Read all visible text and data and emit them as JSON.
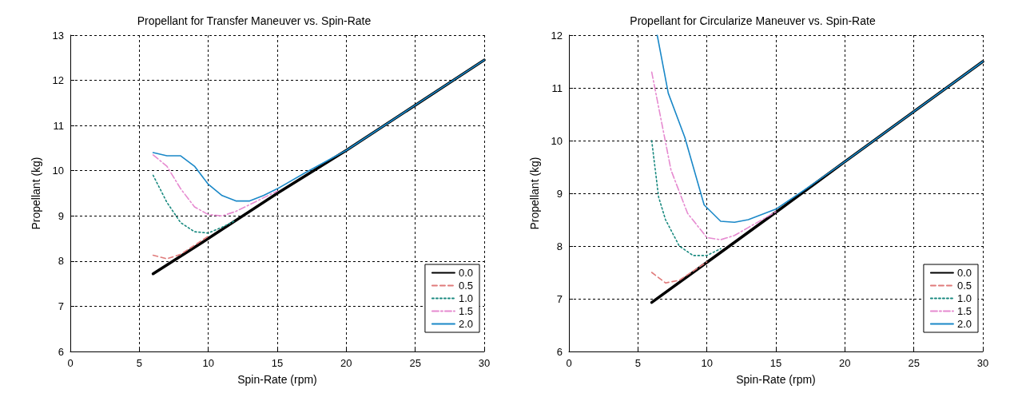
{
  "chart_data": [
    {
      "type": "line",
      "title": "Propellant for Transfer Maneuver vs. Spin-Rate",
      "xlabel": "Spin-Rate (rpm)",
      "ylabel": "Propellant (kg)",
      "xlim": [
        0,
        30
      ],
      "xticks": [
        0,
        5,
        10,
        15,
        20,
        25,
        30
      ],
      "ylim": [
        6,
        13
      ],
      "yticks": [
        6,
        7,
        8,
        9,
        10,
        11,
        12,
        13
      ],
      "grid": true,
      "legend": "bottom right",
      "marker": "none",
      "series": [
        {
          "name": "0.0",
          "color": "#000000",
          "line_style": "solid",
          "x": [
            6,
            10,
            15,
            20,
            25,
            30
          ],
          "values": [
            7.72,
            8.5,
            9.5,
            10.45,
            11.45,
            12.45
          ]
        },
        {
          "name": "0.5",
          "color": "#e07b7b",
          "line_style": "dashed",
          "x": [
            6,
            7,
            8,
            10
          ],
          "values": [
            8.13,
            8.05,
            8.15,
            8.55
          ]
        },
        {
          "name": "1.0",
          "color": "#1a8a80",
          "line_style": "dotted",
          "x": [
            6,
            7,
            8,
            9,
            10,
            11,
            12
          ],
          "values": [
            9.9,
            9.3,
            8.85,
            8.65,
            8.62,
            8.75,
            8.9
          ]
        },
        {
          "name": "1.5",
          "color": "#e68ad0",
          "line_style": "dashdot",
          "x": [
            6,
            7,
            8,
            9,
            10,
            11,
            12,
            13,
            15
          ],
          "values": [
            10.35,
            10.1,
            9.6,
            9.2,
            9.03,
            9.0,
            9.1,
            9.25,
            9.55
          ]
        },
        {
          "name": "2.0",
          "color": "#1a88c8",
          "line_style": "solid",
          "x": [
            6,
            7,
            8,
            9,
            10,
            11,
            12,
            13,
            14,
            15,
            17,
            20,
            25,
            30
          ],
          "values": [
            10.4,
            10.33,
            10.33,
            10.1,
            9.7,
            9.45,
            9.33,
            9.33,
            9.45,
            9.6,
            9.95,
            10.45,
            11.45,
            12.45
          ]
        }
      ]
    },
    {
      "type": "line",
      "title": "Propellant for Circularize Maneuver vs. Spin-Rate",
      "xlabel": "Spin-Rate (rpm)",
      "ylabel": "Propellant (kg)",
      "xlim": [
        0,
        30
      ],
      "xticks": [
        0,
        5,
        10,
        15,
        20,
        25,
        30
      ],
      "ylim": [
        6,
        12
      ],
      "yticks": [
        6,
        7,
        8,
        9,
        10,
        11,
        12
      ],
      "grid": true,
      "legend": "bottom right",
      "marker": "none",
      "series": [
        {
          "name": "0.0",
          "color": "#000000",
          "line_style": "solid",
          "x": [
            6,
            10,
            15,
            20,
            25,
            30
          ],
          "values": [
            6.93,
            7.69,
            8.64,
            9.6,
            10.55,
            11.5
          ]
        },
        {
          "name": "0.5",
          "color": "#e07b7b",
          "line_style": "dashed",
          "x": [
            6,
            7,
            8,
            10
          ],
          "values": [
            7.5,
            7.3,
            7.35,
            7.7
          ]
        },
        {
          "name": "1.0",
          "color": "#1a8a80",
          "line_style": "dotted",
          "x": [
            6,
            6.5,
            7,
            8,
            9,
            10,
            11
          ],
          "values": [
            10.0,
            8.93,
            8.5,
            8.0,
            7.82,
            7.82,
            7.95
          ]
        },
        {
          "name": "1.5",
          "color": "#e68ad0",
          "line_style": "dashdot",
          "x": [
            6,
            7.4,
            8.6,
            10,
            11,
            12,
            13,
            15
          ],
          "values": [
            11.3,
            9.44,
            8.62,
            8.16,
            8.12,
            8.2,
            8.35,
            8.65
          ]
        },
        {
          "name": "2.0",
          "color": "#1a88c8",
          "line_style": "solid",
          "x": [
            6.4,
            7.2,
            8.4,
            9.8,
            11,
            12,
            13,
            15,
            17,
            20,
            25,
            30
          ],
          "values": [
            12,
            10.9,
            10.06,
            8.78,
            8.47,
            8.45,
            8.5,
            8.7,
            9.05,
            9.6,
            10.55,
            11.5
          ]
        }
      ]
    }
  ]
}
